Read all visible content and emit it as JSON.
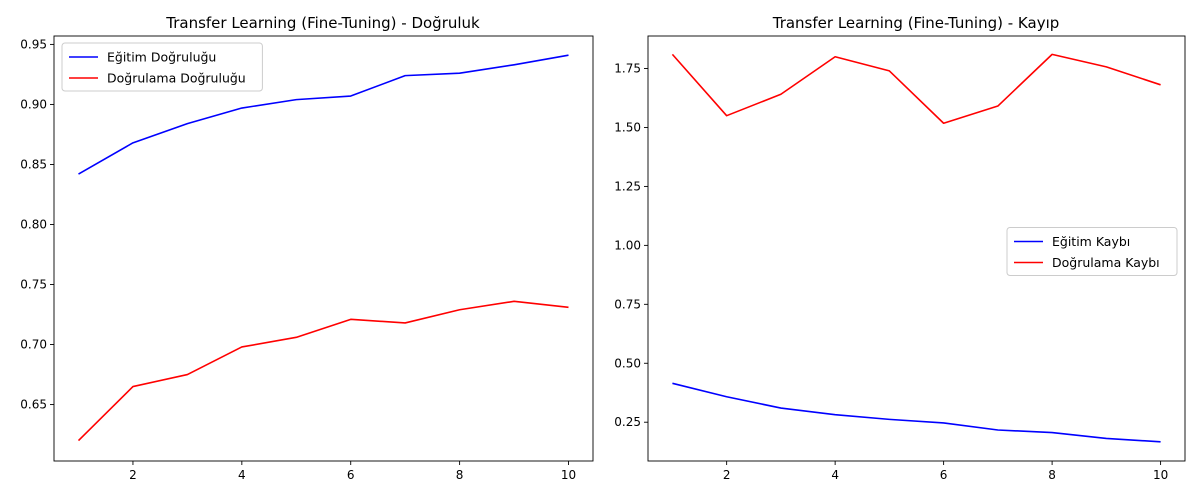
{
  "chart_data": [
    {
      "type": "line",
      "title": "Transfer Learning (Fine-Tuning) - Doğruluk",
      "xlabel": "",
      "ylabel": "",
      "x": [
        1,
        2,
        3,
        4,
        5,
        6,
        7,
        8,
        9,
        10
      ],
      "xlim": [
        0.55,
        10.45
      ],
      "ylim": [
        0.603,
        0.957
      ],
      "xticks": [
        2,
        4,
        6,
        8,
        10
      ],
      "yticks": [
        0.65,
        0.7,
        0.75,
        0.8,
        0.85,
        0.9,
        0.95
      ],
      "ytick_labels": [
        "0.65",
        "0.70",
        "0.75",
        "0.80",
        "0.85",
        "0.90",
        "0.95"
      ],
      "legend_position": "upper-left",
      "grid": false,
      "series": [
        {
          "name": "Eğitim Doğruluğu",
          "color": "#0000ff",
          "values": [
            0.842,
            0.868,
            0.884,
            0.897,
            0.904,
            0.907,
            0.924,
            0.926,
            0.933,
            0.941
          ]
        },
        {
          "name": "Doğrulama Doğruluğu",
          "color": "#ff0000",
          "values": [
            0.62,
            0.665,
            0.675,
            0.698,
            0.706,
            0.721,
            0.718,
            0.729,
            0.736,
            0.731
          ]
        }
      ]
    },
    {
      "type": "line",
      "title": "Transfer Learning (Fine-Tuning) - Kayıp",
      "xlabel": "",
      "ylabel": "",
      "x": [
        1,
        2,
        3,
        4,
        5,
        6,
        7,
        8,
        9,
        10
      ],
      "xlim": [
        0.55,
        10.45
      ],
      "ylim": [
        0.0855,
        1.888
      ],
      "xticks": [
        2,
        4,
        6,
        8,
        10
      ],
      "yticks": [
        0.25,
        0.5,
        0.75,
        1.0,
        1.25,
        1.5,
        1.75
      ],
      "ytick_labels": [
        "0.25",
        "0.50",
        "0.75",
        "1.00",
        "1.25",
        "1.50",
        "1.75"
      ],
      "legend_position": "center-right",
      "grid": false,
      "series": [
        {
          "name": "Eğitim Kaybı",
          "color": "#0000ff",
          "values": [
            0.415,
            0.358,
            0.31,
            0.282,
            0.262,
            0.247,
            0.217,
            0.206,
            0.181,
            0.167
          ]
        },
        {
          "name": "Doğrulama Kaybı",
          "color": "#ff0000",
          "values": [
            1.81,
            1.55,
            1.641,
            1.8,
            1.74,
            1.518,
            1.591,
            1.81,
            1.757,
            1.681
          ]
        }
      ]
    }
  ]
}
